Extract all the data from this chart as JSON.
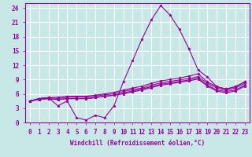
{
  "xlabel": "Windchill (Refroidissement éolien,°C)",
  "x_values": [
    0,
    1,
    2,
    3,
    4,
    5,
    6,
    7,
    8,
    9,
    10,
    11,
    12,
    13,
    14,
    15,
    16,
    17,
    18,
    19,
    20,
    21,
    22,
    23
  ],
  "series": [
    [
      4.5,
      5.0,
      5.2,
      3.5,
      4.5,
      1.0,
      0.5,
      1.5,
      1.0,
      3.5,
      8.5,
      13.0,
      17.5,
      21.5,
      24.5,
      22.5,
      19.5,
      15.5,
      11.0,
      9.5,
      7.5,
      7.0,
      7.5,
      8.5
    ],
    [
      4.5,
      5.0,
      5.2,
      5.3,
      5.5,
      5.5,
      5.5,
      5.7,
      6.0,
      6.3,
      6.8,
      7.2,
      7.6,
      8.2,
      8.7,
      9.0,
      9.3,
      9.7,
      10.2,
      8.5,
      7.5,
      7.0,
      7.5,
      8.5
    ],
    [
      4.5,
      5.0,
      5.2,
      5.0,
      5.3,
      5.3,
      5.3,
      5.5,
      5.8,
      6.0,
      6.5,
      6.9,
      7.2,
      7.8,
      8.3,
      8.6,
      8.9,
      9.2,
      9.6,
      8.2,
      7.2,
      6.8,
      7.2,
      8.2
    ],
    [
      4.5,
      4.8,
      5.0,
      4.8,
      5.0,
      5.0,
      5.0,
      5.2,
      5.5,
      5.7,
      6.2,
      6.6,
      7.0,
      7.5,
      8.0,
      8.3,
      8.6,
      8.9,
      9.3,
      7.8,
      6.8,
      6.5,
      6.8,
      7.8
    ],
    [
      4.5,
      4.8,
      5.0,
      4.8,
      5.0,
      5.0,
      5.0,
      5.2,
      5.5,
      5.7,
      6.0,
      6.4,
      6.8,
      7.3,
      7.8,
      8.1,
      8.4,
      8.7,
      9.1,
      7.6,
      6.6,
      6.2,
      6.6,
      7.6
    ]
  ],
  "line_color": "#990099",
  "bg_color": "#c8e8e8",
  "grid_color": "#ffffff",
  "spine_color": "#990099",
  "ylim": [
    0,
    25
  ],
  "yticks": [
    0,
    3,
    6,
    9,
    12,
    15,
    18,
    21,
    24
  ],
  "xlim": [
    -0.5,
    23.5
  ],
  "xlabel_fontsize": 5.5,
  "tick_fontsize": 5.5,
  "marker": "*",
  "markersize": 2.5,
  "linewidth": 0.8
}
